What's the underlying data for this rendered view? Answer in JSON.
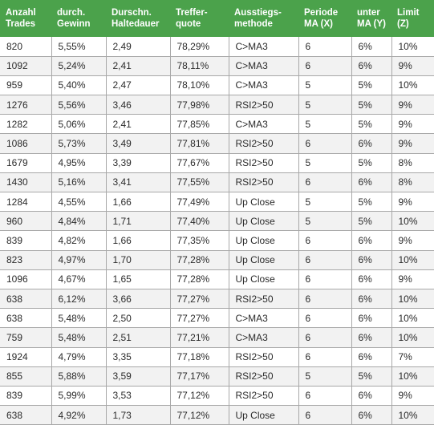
{
  "columns": [
    {
      "line1": "Anzahl",
      "line2": "Trades"
    },
    {
      "line1": "durch.",
      "line2": "Gewinn"
    },
    {
      "line1": "Durschn.",
      "line2": "Haltedauer"
    },
    {
      "line1": "Treffer-",
      "line2": "quote"
    },
    {
      "line1": "Ausstiegs-",
      "line2": "methode"
    },
    {
      "line1": "Periode",
      "line2": "MA (X)"
    },
    {
      "line1": "unter",
      "line2": "MA (Y)"
    },
    {
      "line1": "Limit",
      "line2": "(Z)"
    }
  ],
  "rows": [
    [
      "820",
      "5,55%",
      "2,49",
      "78,29%",
      "C>MA3",
      "6",
      "6%",
      "10%"
    ],
    [
      "1092",
      "5,24%",
      "2,41",
      "78,11%",
      "C>MA3",
      "6",
      "6%",
      "9%"
    ],
    [
      "959",
      "5,40%",
      "2,47",
      "78,10%",
      "C>MA3",
      "5",
      "5%",
      "10%"
    ],
    [
      "1276",
      "5,56%",
      "3,46",
      "77,98%",
      "RSI2>50",
      "5",
      "5%",
      "9%"
    ],
    [
      "1282",
      "5,06%",
      "2,41",
      "77,85%",
      "C>MA3",
      "5",
      "5%",
      "9%"
    ],
    [
      "1086",
      "5,73%",
      "3,49",
      "77,81%",
      "RSI2>50",
      "6",
      "6%",
      "9%"
    ],
    [
      "1679",
      "4,95%",
      "3,39",
      "77,67%",
      "RSI2>50",
      "5",
      "5%",
      "8%"
    ],
    [
      "1430",
      "5,16%",
      "3,41",
      "77,55%",
      "RSI2>50",
      "6",
      "6%",
      "8%"
    ],
    [
      "1284",
      "4,55%",
      "1,66",
      "77,49%",
      "Up Close",
      "5",
      "5%",
      "9%"
    ],
    [
      "960",
      "4,84%",
      "1,71",
      "77,40%",
      "Up Close",
      "5",
      "5%",
      "10%"
    ],
    [
      "839",
      "4,82%",
      "1,66",
      "77,35%",
      "Up Close",
      "6",
      "6%",
      "9%"
    ],
    [
      "823",
      "4,97%",
      "1,70",
      "77,28%",
      "Up Close",
      "6",
      "6%",
      "10%"
    ],
    [
      "1096",
      "4,67%",
      "1,65",
      "77,28%",
      "Up Close",
      "6",
      "6%",
      "9%"
    ],
    [
      "638",
      "6,12%",
      "3,66",
      "77,27%",
      "RSI2>50",
      "6",
      "6%",
      "10%"
    ],
    [
      "638",
      "5,48%",
      "2,50",
      "77,27%",
      "C>MA3",
      "6",
      "6%",
      "10%"
    ],
    [
      "759",
      "5,48%",
      "2,51",
      "77,21%",
      "C>MA3",
      "6",
      "6%",
      "10%"
    ],
    [
      "1924",
      "4,79%",
      "3,35",
      "77,18%",
      "RSI2>50",
      "6",
      "6%",
      "7%"
    ],
    [
      "855",
      "5,88%",
      "3,59",
      "77,17%",
      "RSI2>50",
      "5",
      "5%",
      "10%"
    ],
    [
      "839",
      "5,99%",
      "3,53",
      "77,12%",
      "RSI2>50",
      "6",
      "6%",
      "9%"
    ],
    [
      "638",
      "4,92%",
      "1,73",
      "77,12%",
      "Up Close",
      "6",
      "6%",
      "10%"
    ]
  ]
}
